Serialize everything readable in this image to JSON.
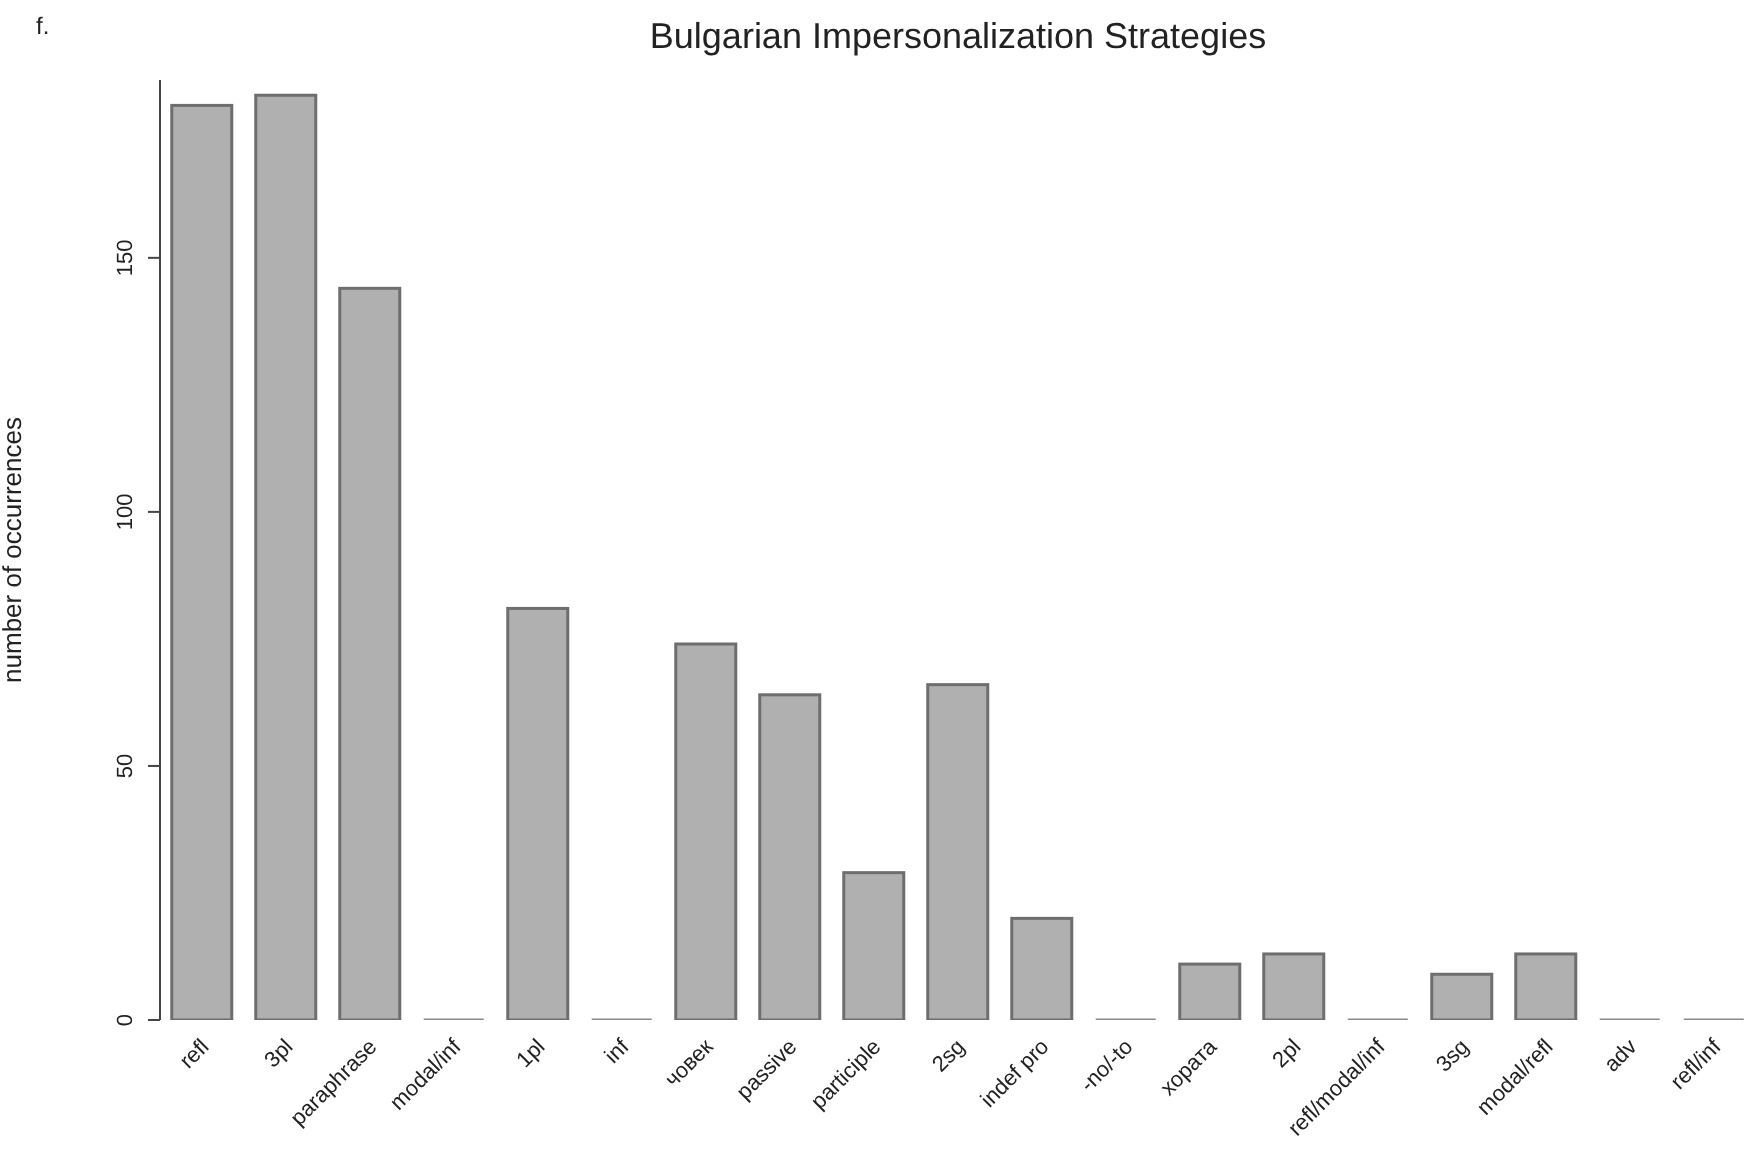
{
  "chart_data": {
    "type": "bar",
    "title": "Bulgarian Impersonalization Strategies",
    "ylabel": "number of occurrences",
    "annotations": [
      "f."
    ],
    "categories": [
      "refl",
      "3pl",
      "paraphrase",
      "modal/inf",
      "1pl",
      "inf",
      "човек",
      "passive",
      "participle",
      "2sg",
      "indef pro",
      "-no/-to",
      "хората",
      "2pl",
      "refl/modal/inf",
      "3sg",
      "modal/refl",
      "adv",
      "refl/inf"
    ],
    "values": [
      180,
      182,
      144,
      0,
      81,
      0,
      74,
      64,
      29,
      66,
      20,
      0,
      11,
      13,
      0,
      9,
      13,
      0,
      0
    ],
    "color": "#b0b0b0",
    "ylim": [
      0,
      185
    ],
    "yticks": [
      0,
      50,
      100,
      150
    ],
    "grid": false,
    "legend": false
  }
}
